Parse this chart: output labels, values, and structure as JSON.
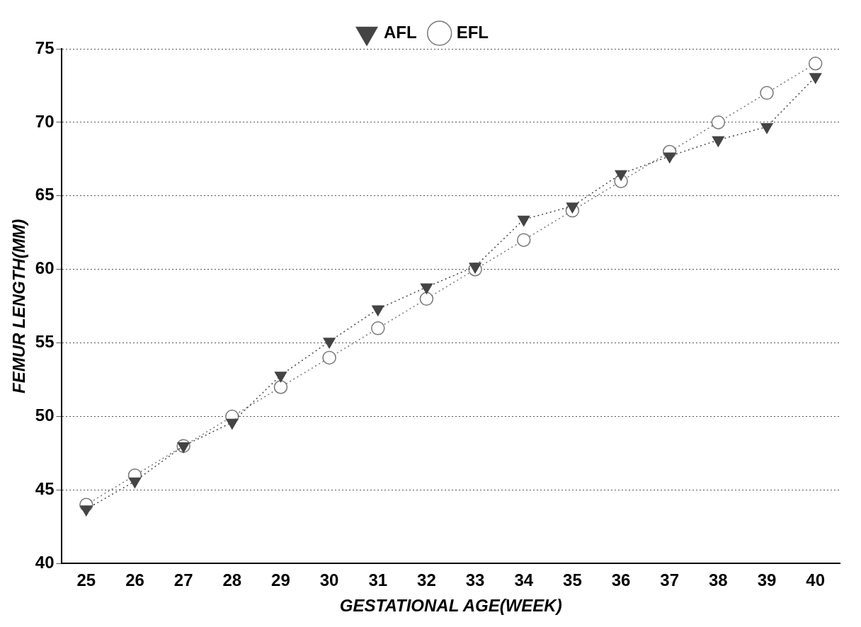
{
  "chart_data": {
    "type": "line",
    "xlabel": "GESTATIONAL AGE(WEEK)",
    "ylabel": "FEMUR LENGTH(MM)",
    "categories": [
      "25",
      "26",
      "27",
      "28",
      "29",
      "30",
      "31",
      "32",
      "33",
      "34",
      "35",
      "36",
      "37",
      "38",
      "39",
      "40"
    ],
    "series": [
      {
        "name": "AFL",
        "color": "#444444",
        "marker": "triangle",
        "values": [
          43.7,
          45.6,
          48,
          49.6,
          52.8,
          55.1,
          57.3,
          58.8,
          60.2,
          63.4,
          64.3,
          66.5,
          67.7,
          68.8,
          69.7,
          73.1
        ]
      },
      {
        "name": "EFL",
        "color": "#777777",
        "marker": "circle",
        "values": [
          44,
          46,
          48,
          50,
          52,
          54,
          56,
          58,
          60,
          62,
          64,
          66,
          68,
          70,
          72,
          74
        ]
      }
    ],
    "ylim": [
      40,
      75
    ],
    "yticks": [
      40,
      45,
      50,
      55,
      60,
      65,
      70,
      75
    ],
    "grid": "y",
    "legend": "top",
    "line_style": "dotted"
  }
}
